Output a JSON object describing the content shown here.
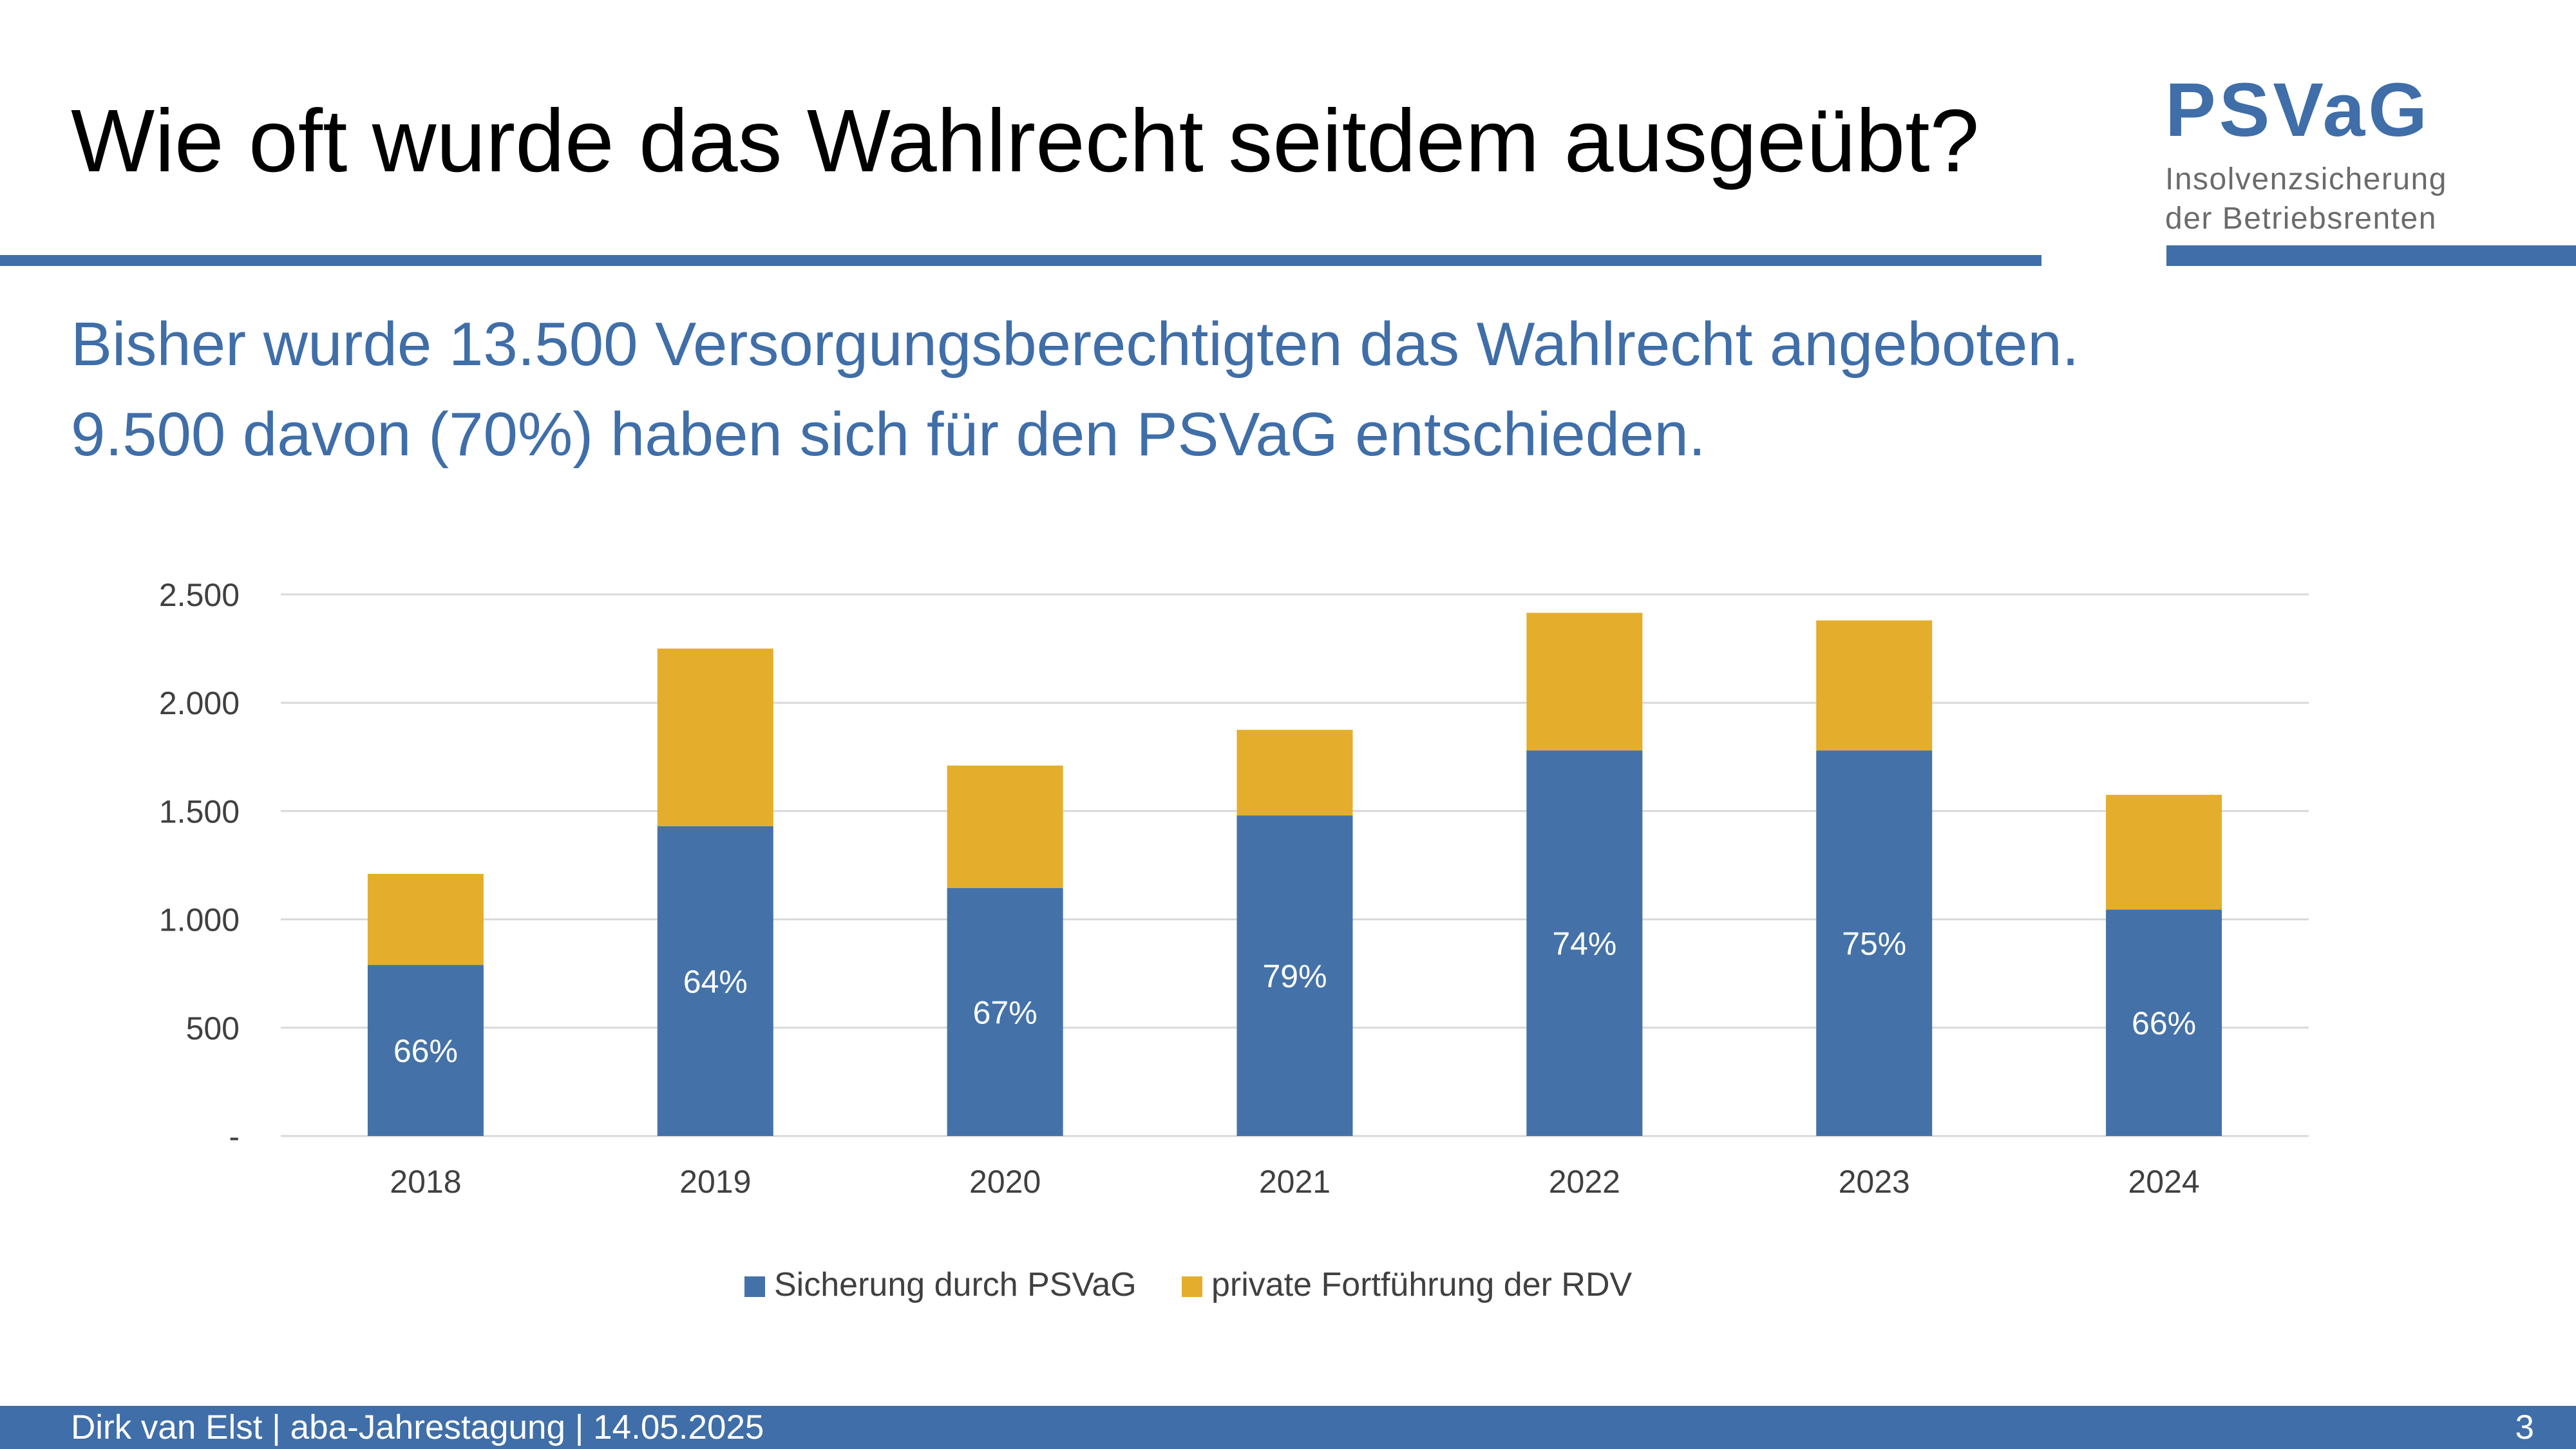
{
  "slide": {
    "title": "Wie oft wurde das Wahlrecht seitdem ausgeübt?",
    "subtitle_lines": [
      "Bisher wurde 13.500 Versorgungsberechtigten das Wahlrecht angeboten.",
      "9.500 davon (70%) haben sich für den PSVaG entschieden."
    ]
  },
  "logo": {
    "name": "PSVaG",
    "tagline_lines": [
      "Insolvenzsicherung",
      "der Betriebsrenten"
    ]
  },
  "footer": {
    "text": "Dirk van Elst | aba-Jahrestagung | 14.05.2025",
    "page_number": "3"
  },
  "colors": {
    "accent_blue": "#3f6ea8",
    "bar_blue": "#4472a8",
    "bar_gold": "#e4ae2c",
    "gridline": "#d9d9d9",
    "axis_text": "#404040"
  },
  "chart_data": {
    "type": "bar",
    "stacked": true,
    "categories": [
      "2018",
      "2019",
      "2020",
      "2021",
      "2022",
      "2023",
      "2024"
    ],
    "series": [
      {
        "name": "Sicherung durch PSVaG",
        "color": "#4472a8",
        "values": [
          790,
          1430,
          1145,
          1480,
          1780,
          1780,
          1045
        ]
      },
      {
        "name": "private Fortführung der RDV",
        "color": "#e4ae2c",
        "values": [
          420,
          820,
          565,
          395,
          635,
          600,
          530
        ]
      }
    ],
    "data_labels": [
      "66%",
      "64%",
      "67%",
      "79%",
      "74%",
      "75%",
      "66%"
    ],
    "ylim": [
      0,
      2500
    ],
    "yticks": [
      0,
      500,
      1000,
      1500,
      2000,
      2500
    ],
    "ytick_labels": [
      "-",
      "500",
      "1.000",
      "1.500",
      "2.000",
      "2.500"
    ],
    "grid": true,
    "legend_position": "bottom",
    "title": "",
    "xlabel": "",
    "ylabel": ""
  }
}
